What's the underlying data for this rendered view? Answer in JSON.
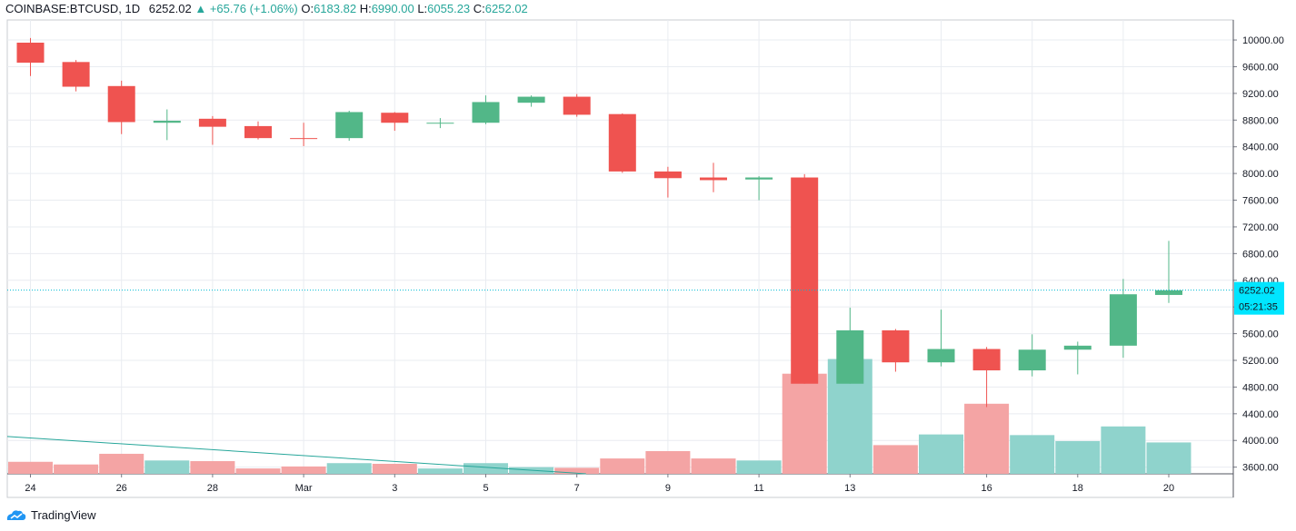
{
  "header": {
    "symbol": "COINBASE:BTCUSD, 1D",
    "last": "6252.02",
    "arrow": "▲",
    "change": "+65.76 (+1.06%)",
    "o_label": "O:",
    "o_val": "6183.82",
    "h_label": "H:",
    "h_val": "6990.00",
    "l_label": "L:",
    "l_val": "6055.23",
    "c_label": "C:",
    "c_val": "6252.02"
  },
  "footer": {
    "brand": "TradingView"
  },
  "colors": {
    "up": "#52b788",
    "down": "#ef5350",
    "vol_up": "#8fd3cc",
    "vol_down": "#f4a4a4",
    "grid": "#e9ecf1",
    "price_line": "#00bcd4",
    "price_tag": "#00e5ff",
    "trendline": "#26a69a"
  },
  "chart_data": {
    "type": "candlestick",
    "ylim": [
      3500,
      10300
    ],
    "y_ticks": [
      "10000.00",
      "9600.00",
      "9200.00",
      "8800.00",
      "8400.00",
      "8000.00",
      "7600.00",
      "7200.00",
      "6800.00",
      "6400.00",
      "6000.00",
      "5600.00",
      "5200.00",
      "4800.00",
      "4400.00",
      "4000.00",
      "3600.00"
    ],
    "x_labels": [
      {
        "label": "24",
        "index": 0
      },
      {
        "label": "26",
        "index": 2
      },
      {
        "label": "28",
        "index": 4
      },
      {
        "label": "Mar",
        "index": 6
      },
      {
        "label": "3",
        "index": 8
      },
      {
        "label": "5",
        "index": 10
      },
      {
        "label": "7",
        "index": 12
      },
      {
        "label": "9",
        "index": 14
      },
      {
        "label": "11",
        "index": 16
      },
      {
        "label": "13",
        "index": 18
      },
      {
        "label": "16",
        "index": 21
      },
      {
        "label": "18",
        "index": 23
      },
      {
        "label": "20",
        "index": 25
      }
    ],
    "last_price": "6252.02",
    "countdown": "05:21:35",
    "candles": [
      {
        "o": 9960,
        "h": 10030,
        "l": 9460,
        "c": 9660,
        "vol": 3680,
        "dir": "down"
      },
      {
        "o": 9670,
        "h": 9700,
        "l": 9230,
        "c": 9300,
        "vol": 3640,
        "dir": "down"
      },
      {
        "o": 9310,
        "h": 9390,
        "l": 8590,
        "c": 8770,
        "vol": 3800,
        "dir": "down"
      },
      {
        "o": 8760,
        "h": 8960,
        "l": 8500,
        "c": 8790,
        "vol": 3700,
        "dir": "up"
      },
      {
        "o": 8820,
        "h": 8860,
        "l": 8430,
        "c": 8700,
        "vol": 3690,
        "dir": "down"
      },
      {
        "o": 8710,
        "h": 8780,
        "l": 8510,
        "c": 8530,
        "vol": 3580,
        "dir": "down"
      },
      {
        "o": 8530,
        "h": 8760,
        "l": 8410,
        "c": 8530,
        "vol": 3610,
        "dir": "down"
      },
      {
        "o": 8530,
        "h": 8940,
        "l": 8490,
        "c": 8920,
        "vol": 3660,
        "dir": "up"
      },
      {
        "o": 8910,
        "h": 8920,
        "l": 8640,
        "c": 8760,
        "vol": 3650,
        "dir": "down"
      },
      {
        "o": 8750,
        "h": 8830,
        "l": 8680,
        "c": 8760,
        "vol": 3580,
        "dir": "up"
      },
      {
        "o": 8760,
        "h": 9170,
        "l": 8740,
        "c": 9070,
        "vol": 3660,
        "dir": "up"
      },
      {
        "o": 9060,
        "h": 9170,
        "l": 9000,
        "c": 9150,
        "vol": 3600,
        "dir": "up"
      },
      {
        "o": 9150,
        "h": 9190,
        "l": 8850,
        "c": 8880,
        "vol": 3590,
        "dir": "down"
      },
      {
        "o": 8890,
        "h": 8900,
        "l": 8010,
        "c": 8030,
        "vol": 3730,
        "dir": "down"
      },
      {
        "o": 8030,
        "h": 8100,
        "l": 7640,
        "c": 7930,
        "vol": 3840,
        "dir": "down"
      },
      {
        "o": 7940,
        "h": 8160,
        "l": 7720,
        "c": 7900,
        "vol": 3730,
        "dir": "down"
      },
      {
        "o": 7910,
        "h": 7960,
        "l": 7600,
        "c": 7940,
        "vol": 3700,
        "dir": "up"
      },
      {
        "o": 7940,
        "h": 7990,
        "l": 4850,
        "c": 4850,
        "vol": 5000,
        "dir": "down"
      },
      {
        "o": 4850,
        "h": 5990,
        "l": 4850,
        "c": 5650,
        "vol": 5220,
        "dir": "up"
      },
      {
        "o": 5650,
        "h": 5670,
        "l": 5030,
        "c": 5170,
        "vol": 3930,
        "dir": "down"
      },
      {
        "o": 5170,
        "h": 5960,
        "l": 5110,
        "c": 5370,
        "vol": 4090,
        "dir": "up"
      },
      {
        "o": 5370,
        "h": 5400,
        "l": 4500,
        "c": 5050,
        "vol": 4550,
        "dir": "down"
      },
      {
        "o": 5050,
        "h": 5590,
        "l": 4960,
        "c": 5360,
        "vol": 4080,
        "dir": "up"
      },
      {
        "o": 5360,
        "h": 5480,
        "l": 4990,
        "c": 5420,
        "vol": 3990,
        "dir": "up"
      },
      {
        "o": 5420,
        "h": 6420,
        "l": 5240,
        "c": 6190,
        "vol": 4210,
        "dir": "up"
      },
      {
        "o": 6180,
        "h": 6990,
        "l": 6060,
        "c": 6250,
        "vol": 3970,
        "dir": "up"
      }
    ]
  }
}
